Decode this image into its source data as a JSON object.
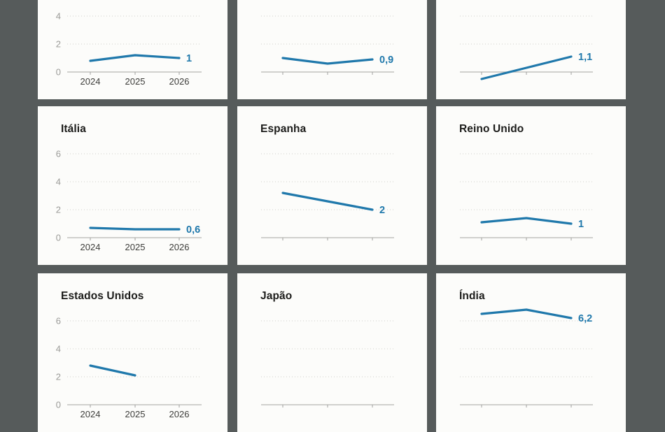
{
  "page": {
    "background_color": "#565b5b",
    "card_color": "#fcfcfa"
  },
  "colors": {
    "line": "#1f78ab",
    "gridline": "#d8d8d4",
    "axis": "#b5b5b2",
    "tick": "#a0a09d",
    "y_label": "#9b9b98",
    "x_label": "#3d3d3a",
    "title": "#1c1c1a"
  },
  "years": [
    "2024",
    "2025",
    "2026"
  ],
  "y_axis_ticks": [
    0,
    2,
    4,
    6
  ],
  "chart_data": [
    {
      "type": "line",
      "title": null,
      "x": [
        "2024",
        "2025",
        "2026"
      ],
      "values": [
        0.8,
        1.2,
        1.0
      ],
      "end_label": "1",
      "axis_labels": true,
      "ylim": [
        0,
        7
      ],
      "grid": "dotted"
    },
    {
      "type": "line",
      "title": null,
      "x": [
        "2024",
        "2025",
        "2026"
      ],
      "values": [
        1.0,
        0.6,
        0.9
      ],
      "end_label": "0,9",
      "axis_labels": false,
      "ylim": [
        0,
        7
      ],
      "grid": "dotted"
    },
    {
      "type": "line",
      "title": null,
      "x": [
        "2024",
        "2025",
        "2026"
      ],
      "values": [
        -0.5,
        0.3,
        1.1
      ],
      "end_label": "1,1",
      "axis_labels": false,
      "ylim": [
        0,
        7
      ],
      "grid": "dotted"
    },
    {
      "type": "line",
      "title": "Itália",
      "x": [
        "2024",
        "2025",
        "2026"
      ],
      "values": [
        0.7,
        0.6,
        0.6
      ],
      "end_label": "0,6",
      "axis_labels": true,
      "ylim": [
        0,
        7
      ],
      "grid": "dotted"
    },
    {
      "type": "line",
      "title": "Espanha",
      "x": [
        "2024",
        "2025",
        "2026"
      ],
      "values": [
        3.2,
        2.6,
        2.0
      ],
      "end_label": "2",
      "axis_labels": false,
      "ylim": [
        0,
        7
      ],
      "grid": "dotted"
    },
    {
      "type": "line",
      "title": "Reino Unido",
      "x": [
        "2024",
        "2025",
        "2026"
      ],
      "values": [
        1.1,
        1.4,
        1.0
      ],
      "end_label": "1",
      "axis_labels": false,
      "ylim": [
        0,
        7
      ],
      "grid": "dotted"
    },
    {
      "type": "line",
      "title": "Estados Unidos",
      "x": [
        "2024",
        "2025"
      ],
      "values": [
        2.8,
        2.1
      ],
      "end_label": null,
      "axis_labels": true,
      "ylim": [
        0,
        7
      ],
      "grid": "dotted"
    },
    {
      "type": "line",
      "title": "Japão",
      "x": [],
      "values": null,
      "end_label": null,
      "axis_labels": false,
      "ylim": [
        0,
        7
      ],
      "grid": "dotted"
    },
    {
      "type": "line",
      "title": "Índia",
      "x": [
        "2024",
        "2025",
        "2026"
      ],
      "values": [
        6.5,
        6.8,
        6.2
      ],
      "end_label": "6,2",
      "axis_labels": false,
      "ylim": [
        0,
        7
      ],
      "grid": "dotted"
    }
  ]
}
